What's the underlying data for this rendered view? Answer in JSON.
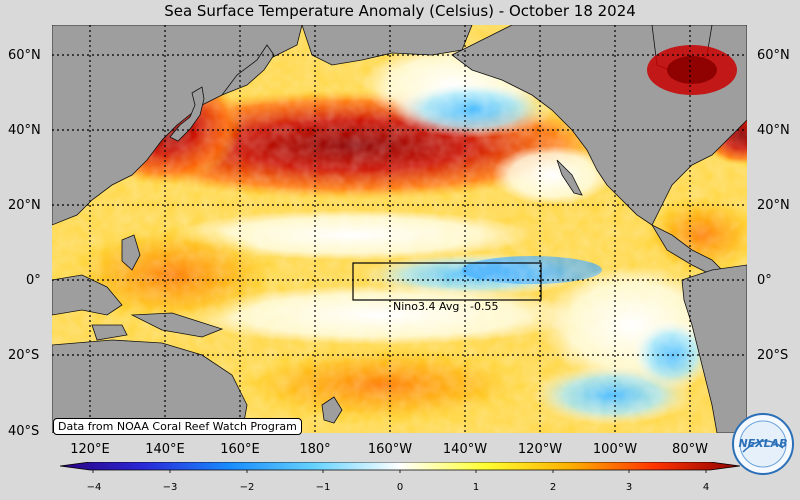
{
  "title": "Sea Surface Temperature Anomaly (Celsius) - October 18 2024",
  "lat_labels": [
    "60°N",
    "40°N",
    "20°N",
    "0°",
    "20°S",
    "40°S"
  ],
  "lon_labels": [
    "120°E",
    "140°E",
    "160°E",
    "180°",
    "160°W",
    "140°W",
    "120°W",
    "100°W",
    "80°W"
  ],
  "credit": "Data from NOAA Coral Reef Watch Program",
  "nino": {
    "label": "Nino3.4 Avg : -0.55"
  },
  "colorbar": {
    "ticks": [
      "−4",
      "−3",
      "−2",
      "−1",
      "0",
      "1",
      "2",
      "3",
      "4"
    ],
    "colors": [
      "#2b0080",
      "#2a2ad8",
      "#1a8cff",
      "#67d3ff",
      "#ffffff",
      "#ffff33",
      "#ffb000",
      "#ff3300",
      "#8b0000"
    ]
  },
  "logo_text": "NEXLAB",
  "colors": {
    "land": "#9e9e9e",
    "background": "#d9d9d9"
  }
}
